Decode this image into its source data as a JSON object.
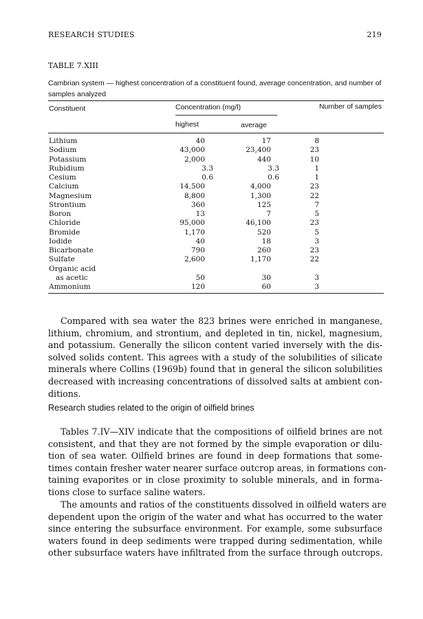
{
  "header": {
    "running_title": "RESEARCH STUDIES",
    "page_number": "219"
  },
  "table": {
    "label": "TABLE 7.XIII",
    "caption": "Cambrian system — highest concentration of a constituent found, average concentration, and number of samples analyzed",
    "columns": {
      "constituent": "Constituent",
      "concentration": "Concentration (mg/l)",
      "highest": "highest",
      "average": "average",
      "samples": "Number of samples"
    },
    "rows": [
      {
        "name": "Lithium",
        "highest": "40",
        "average": "17",
        "samples": "8"
      },
      {
        "name": "Sodium",
        "highest": "43,000",
        "average": "23,400",
        "samples": "23"
      },
      {
        "name": "Potassium",
        "highest": "2,000",
        "average": "440",
        "samples": "10"
      },
      {
        "name": "Rubidium",
        "highest": "3.3",
        "average": "3.3",
        "samples": "1"
      },
      {
        "name": "Cesium",
        "highest": "0.6",
        "average": "0.6",
        "samples": "1"
      },
      {
        "name": "Calcium",
        "highest": "14,500",
        "average": "4,000",
        "samples": "23"
      },
      {
        "name": "Magnesium",
        "highest": "8,800",
        "average": "1,300",
        "samples": "22"
      },
      {
        "name": "Strontium",
        "highest": "360",
        "average": "125",
        "samples": "7"
      },
      {
        "name": "Boron",
        "highest": "13",
        "average": "7",
        "samples": "5"
      },
      {
        "name": "Chloride",
        "highest": "95,000",
        "average": "46,100",
        "samples": "23"
      },
      {
        "name": "Bromide",
        "highest": "1,170",
        "average": "520",
        "samples": "5"
      },
      {
        "name": "Iodide",
        "highest": "40",
        "average": "18",
        "samples": "3"
      },
      {
        "name": "Bicarbonate",
        "highest": "790",
        "average": "260",
        "samples": "23"
      },
      {
        "name": "Sulfate",
        "highest": "2,600",
        "average": "1,170",
        "samples": "22"
      },
      {
        "name": "Organic acid",
        "highest": "",
        "average": "",
        "samples": ""
      },
      {
        "name": "   as acetic",
        "highest": "50",
        "average": "30",
        "samples": "3"
      },
      {
        "name": "Ammonium",
        "highest": "120",
        "average": "60",
        "samples": "3"
      }
    ]
  },
  "body": {
    "para1": [
      "Compared with sea water the 823 brines were enriched in manganese,",
      "lithium, chromium, and strontium, and depleted in tin, nickel, magnesium,",
      "and potassium. Generally the silicon content varied inversely with the dis-",
      "solved solids content. This agrees with a study of the solubilities of silicate",
      "minerals where Collins (1969b) found that in general the silicon solubilities",
      "decreased with increasing concentrations of dissolved salts at ambient con-",
      "ditions."
    ],
    "heading": "Research studies related to the origin of oilfield brines",
    "para2": [
      "Tables 7.IV—XIV indicate that the compositions of oilfield brines are not",
      "consistent, and that they are not formed by the simple evaporation or dilu-",
      "tion of sea water. Oilfield brines are found in deep formations that some-",
      "times contain fresher water nearer surface outcrop areas, in formations con-",
      "taining evaporites or in close proximity to soluble minerals, and in forma-",
      "tions close to surface saline waters."
    ],
    "para3": [
      "The amounts and ratios of the constituents dissolved in oilfield waters are",
      "dependent upon the origin of the water and what has occurred to the water",
      "since entering the subsurface environment. For example, some subsurface",
      "waters found in deep sediments were trapped during sedimentation, while",
      "other subsurface waters have infiltrated from the surface through outcrops."
    ]
  }
}
